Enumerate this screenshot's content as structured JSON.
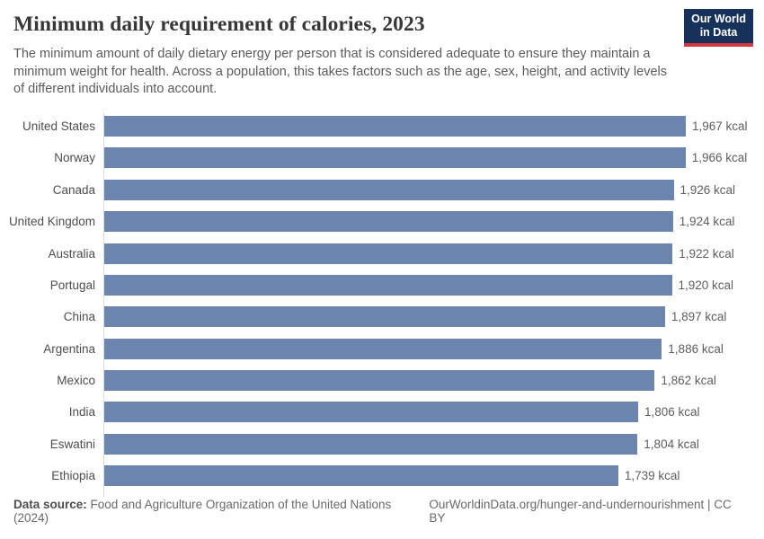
{
  "header": {
    "title": "Minimum daily requirement of calories, 2023",
    "subtitle": "The minimum amount of daily dietary energy per person that is considered adequate to ensure they maintain a minimum weight for health. Across a population, this takes factors such as the age, sex, height, and activity levels of different individuals into account.",
    "logo": {
      "line1": "Our World",
      "line2": "in Data"
    }
  },
  "chart_data": {
    "type": "bar",
    "orientation": "horizontal",
    "title": "Minimum daily requirement of calories, 2023",
    "unit": "kcal",
    "categories": [
      "United States",
      "Norway",
      "Canada",
      "United Kingdom",
      "Australia",
      "Portugal",
      "China",
      "Argentina",
      "Mexico",
      "India",
      "Eswatini",
      "Ethiopia"
    ],
    "values": [
      1967,
      1966,
      1926,
      1924,
      1922,
      1920,
      1897,
      1886,
      1862,
      1806,
      1804,
      1739
    ],
    "value_labels": [
      "1,967 kcal",
      "1,966 kcal",
      "1,926 kcal",
      "1,924 kcal",
      "1,922 kcal",
      "1,920 kcal",
      "1,897 kcal",
      "1,886 kcal",
      "1,862 kcal",
      "1,806 kcal",
      "1,804 kcal",
      "1,739 kcal"
    ],
    "xlim": [
      0,
      1967
    ],
    "bar_color": "#6c85ae",
    "axis_color": "#dcdcdc",
    "grid": false,
    "legend": false
  },
  "footer": {
    "datasource_label": "Data source:",
    "datasource_text": "Food and Agriculture Organization of the United Nations (2024)",
    "attribution": "OurWorldinData.org/hunger-and-undernourishment | CC BY"
  }
}
